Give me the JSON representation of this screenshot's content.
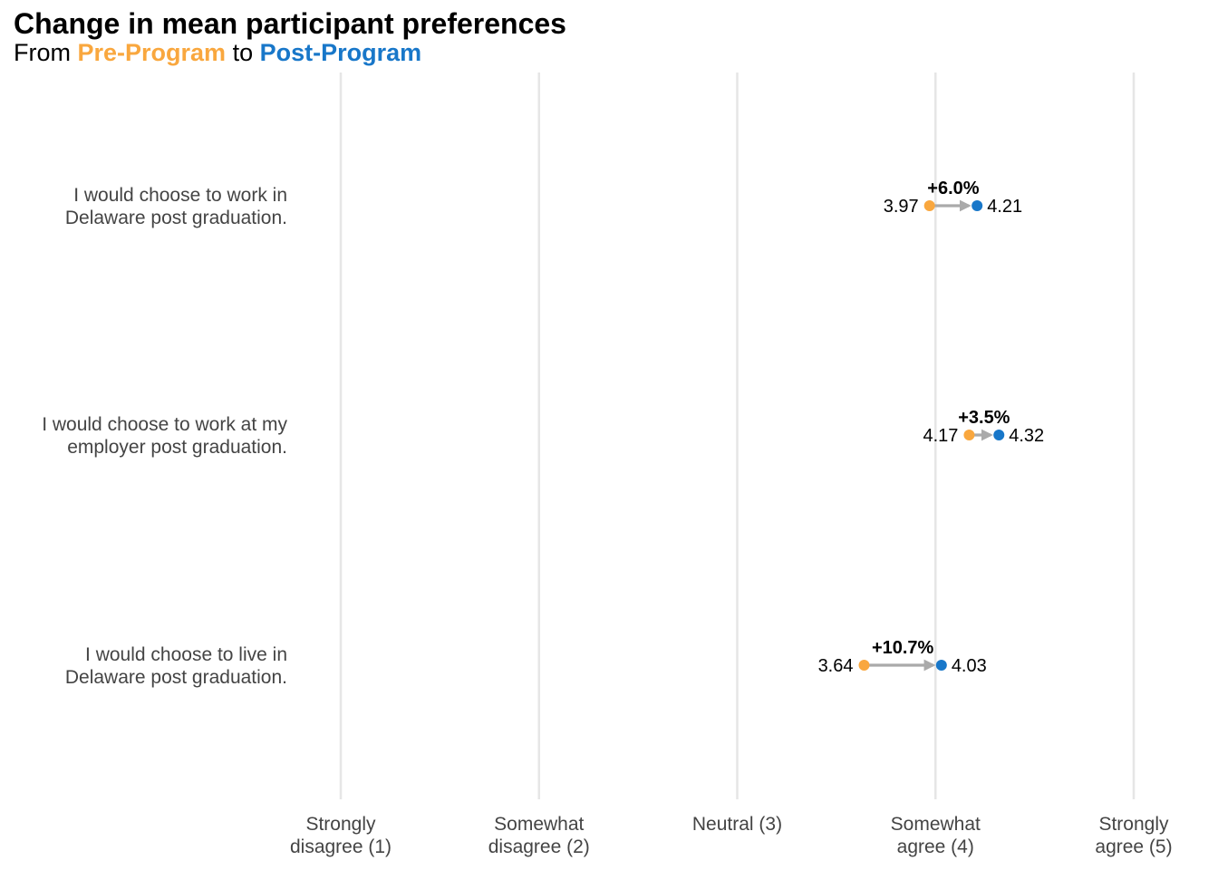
{
  "title": "Change in mean participant preferences",
  "subtitle": {
    "prefix": "From ",
    "pre": "Pre-Program",
    "middle": " to ",
    "post": "Post-Program"
  },
  "colors": {
    "pre": "#F9A73E",
    "post": "#1877C9",
    "arrow": "#AAAAAA",
    "grid": "#E6E6E6"
  },
  "chart_data": {
    "type": "dumbbell",
    "title": "Change in mean participant preferences",
    "subtitle": "From Pre-Program to Post-Program",
    "xlim": [
      1,
      5
    ],
    "grid": true,
    "x_ticks": [
      {
        "value": 1,
        "label": [
          "Strongly",
          "disagree (1)"
        ]
      },
      {
        "value": 2,
        "label": [
          "Somewhat",
          "disagree (2)"
        ]
      },
      {
        "value": 3,
        "label": [
          "Neutral (3)"
        ]
      },
      {
        "value": 4,
        "label": [
          "Somewhat",
          "agree (4)"
        ]
      },
      {
        "value": 5,
        "label": [
          "Strongly",
          "agree (5)"
        ]
      }
    ],
    "series": [
      {
        "name": "Pre-Program",
        "values": [
          3.97,
          4.17,
          3.64
        ]
      },
      {
        "name": "Post-Program",
        "values": [
          4.21,
          4.32,
          4.03
        ]
      }
    ],
    "categories": [
      {
        "label": [
          "I would choose to work in",
          "Delaware post graduation."
        ],
        "pre": 3.97,
        "post": 4.21,
        "pre_label": "3.97",
        "post_label": "4.21",
        "change": "+6.0%"
      },
      {
        "label": [
          "I would choose to work at my",
          "employer post graduation."
        ],
        "pre": 4.17,
        "post": 4.32,
        "pre_label": "4.17",
        "post_label": "4.32",
        "change": "+3.5%"
      },
      {
        "label": [
          "I would choose to live in",
          "Delaware post graduation."
        ],
        "pre": 3.64,
        "post": 4.03,
        "pre_label": "3.64",
        "post_label": "4.03",
        "change": "+10.7%"
      }
    ]
  }
}
